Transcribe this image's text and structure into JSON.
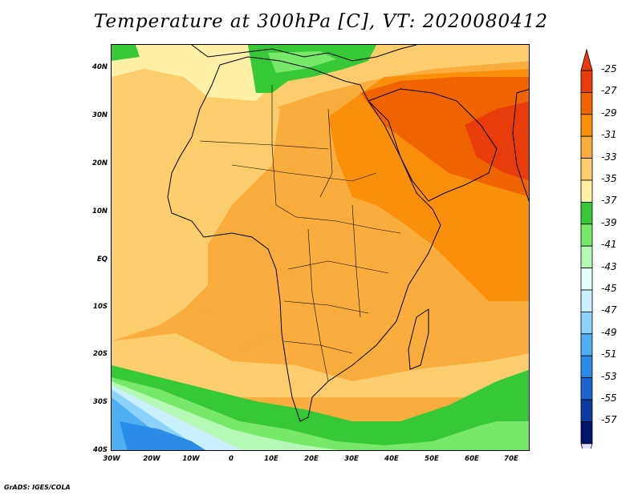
{
  "title": "Temperature at 300hPa [C], VT: 2020080412",
  "credit": "GrADS: IGES/COLA",
  "map": {
    "lat_labels": [
      "40N",
      "30N",
      "20N",
      "10N",
      "EQ",
      "10S",
      "20S",
      "30S",
      "40S"
    ],
    "lon_labels": [
      "30W",
      "20W",
      "10W",
      "0",
      "10E",
      "20E",
      "30E",
      "40E",
      "50E",
      "60E",
      "70E"
    ],
    "lon_range": [
      -30,
      75
    ],
    "lat_range": [
      -40,
      45
    ]
  },
  "colorbar": {
    "labels": [
      "-25",
      "-27",
      "-29",
      "-31",
      "-33",
      "-35",
      "-37",
      "-39",
      "-41",
      "-43",
      "-45",
      "-47",
      "-49",
      "-51",
      "-53",
      "-55",
      "-57"
    ],
    "colors": [
      "#e83c0a",
      "#f06400",
      "#f98f0a",
      "#f9ad3c",
      "#fccd6c",
      "#fff0a6",
      "#37c837",
      "#78e86b",
      "#b4fab4",
      "#e6fffa",
      "#c8f0ff",
      "#8cd2fa",
      "#50aff0",
      "#2a8ce6",
      "#1c64d2",
      "#0a3ca0",
      "#00146e"
    ],
    "top_arrow_color": "#e83c0a",
    "bottom_arrow_color": "#e0e0ff"
  }
}
